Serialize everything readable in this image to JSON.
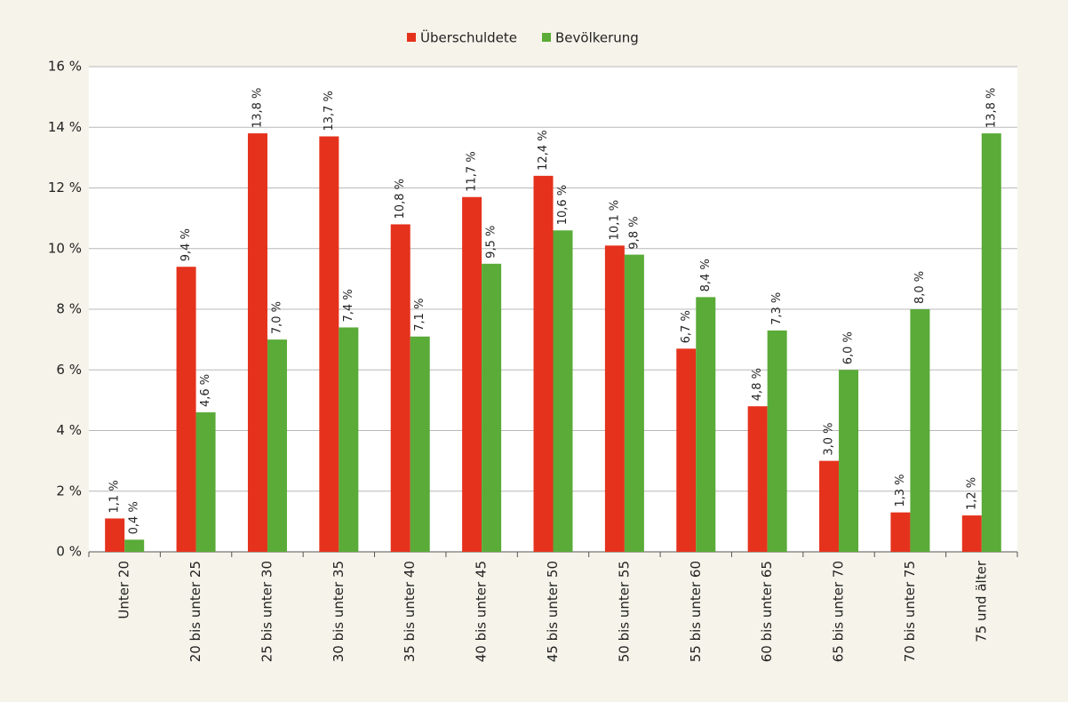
{
  "chart_data": {
    "type": "bar",
    "categories": [
      "Unter 20",
      "20 bis unter 25",
      "25 bis unter 30",
      "30 bis unter 35",
      "35 bis unter 40",
      "40 bis unter 45",
      "45 bis unter 50",
      "50 bis unter 55",
      "55 bis unter 60",
      "60 bis unter 65",
      "65 bis unter 70",
      "70 bis unter 75",
      "75 und älter"
    ],
    "series": [
      {
        "name": "Überschuldete",
        "color": "#e5321c",
        "values": [
          1.1,
          9.4,
          13.8,
          13.7,
          10.8,
          11.7,
          12.4,
          10.1,
          6.7,
          4.8,
          3.0,
          1.3,
          1.2
        ],
        "value_labels": [
          "1,1 %",
          "9,4 %",
          "13,8 %",
          "13,7 %",
          "10,8 %",
          "11,7 %",
          "12,4 %",
          "10,1 %",
          "6,7 %",
          "4,8 %",
          "3,0 %",
          "1,3 %",
          "1,2 %"
        ]
      },
      {
        "name": "Bevölkerung",
        "color": "#5aab38",
        "values": [
          0.4,
          4.6,
          7.0,
          7.4,
          7.1,
          9.5,
          10.6,
          9.8,
          8.4,
          7.3,
          6.0,
          8.0,
          13.8
        ],
        "value_labels": [
          "0,4 %",
          "4,6 %",
          "7,0 %",
          "7,4 %",
          "7,1 %",
          "9,5 %",
          "10,6 %",
          "9,8 %",
          "8,4 %",
          "7,3 %",
          "6,0 %",
          "8,0 %",
          "13,8 %"
        ]
      }
    ],
    "ylim": [
      0,
      16
    ],
    "yticks": [
      {
        "value": 0,
        "label": "0 %"
      },
      {
        "value": 2,
        "label": "2 %"
      },
      {
        "value": 4,
        "label": "4 %"
      },
      {
        "value": 6,
        "label": "6 %"
      },
      {
        "value": 8,
        "label": "8 %"
      },
      {
        "value": 10,
        "label": "10 %"
      },
      {
        "value": 12,
        "label": "12 %"
      },
      {
        "value": 14,
        "label": "14 %"
      },
      {
        "value": 16,
        "label": "16 %"
      }
    ],
    "grid": true,
    "legend": "top"
  }
}
